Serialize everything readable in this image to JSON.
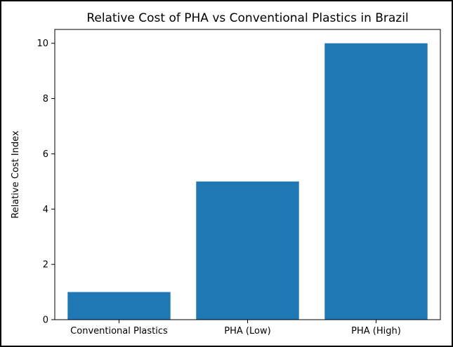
{
  "chart_data": {
    "type": "bar",
    "title": "Relative Cost of PHA vs Conventional Plastics in Brazil",
    "xlabel": "",
    "ylabel": "Relative Cost Index",
    "categories": [
      "Conventional Plastics",
      "PHA (Low)",
      "PHA (High)"
    ],
    "values": [
      1,
      5,
      10
    ],
    "ylim": [
      0,
      10.5
    ],
    "yticks": [
      0,
      2,
      4,
      6,
      8,
      10
    ],
    "grid": false,
    "bar_color": "#1f77b4"
  }
}
